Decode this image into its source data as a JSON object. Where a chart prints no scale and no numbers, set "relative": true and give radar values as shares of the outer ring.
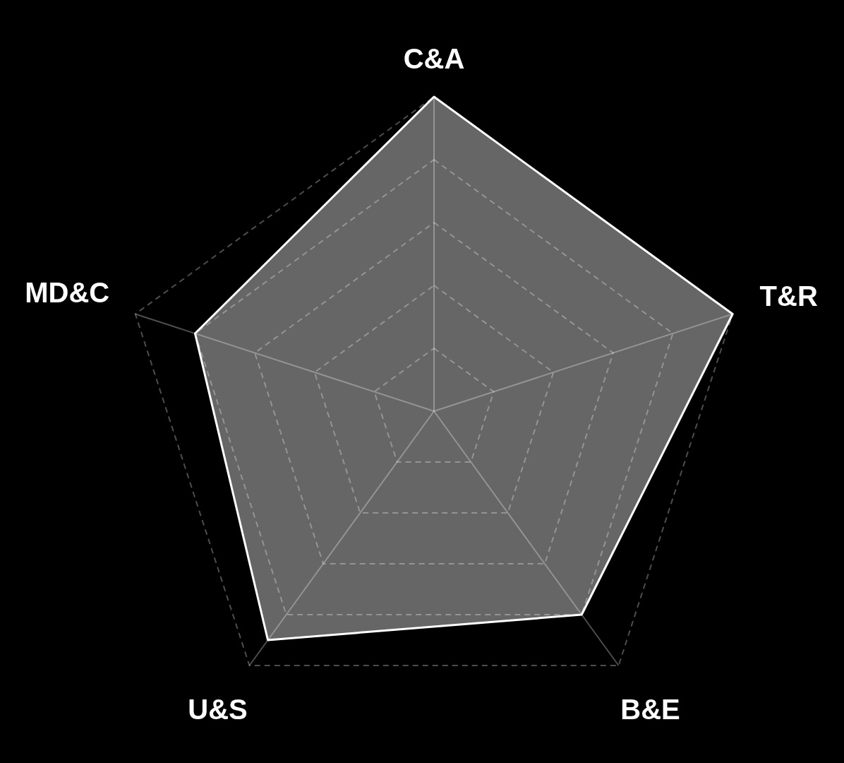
{
  "chart_data": {
    "type": "radar",
    "categories": [
      "C&A",
      "T&R",
      "B&E",
      "U&S",
      "MD&C"
    ],
    "relative": true,
    "grid": true,
    "series": [
      {
        "color": "#ffffff",
        "values": [
          1,
          1,
          0.8,
          0.9,
          0.8
        ]
      }
    ]
  }
}
